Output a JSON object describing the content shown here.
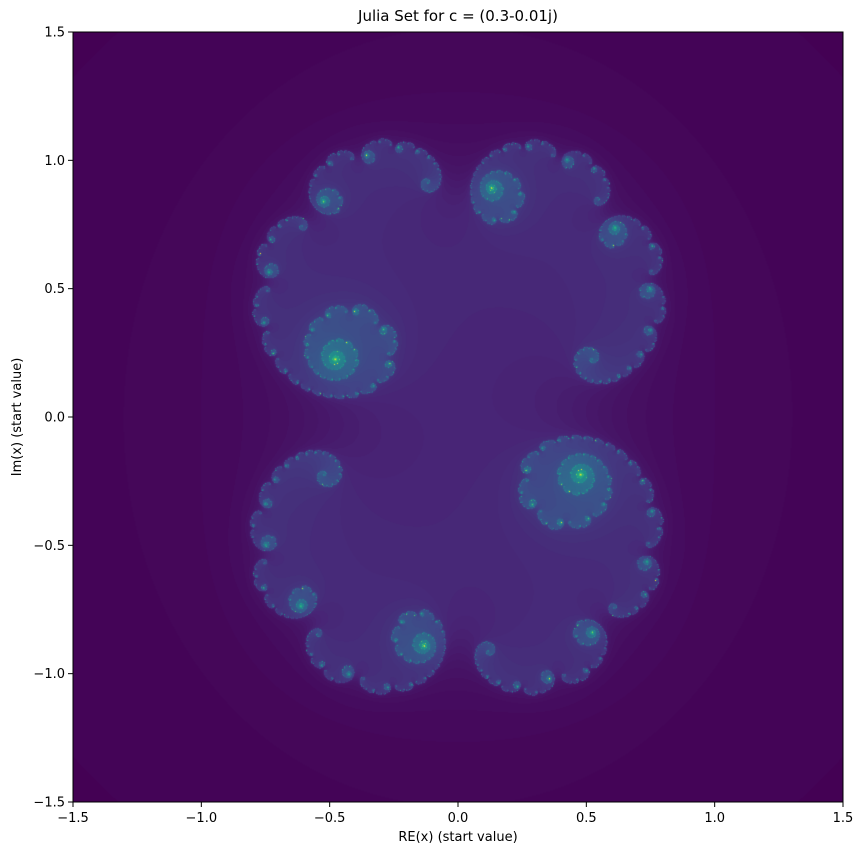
{
  "chart_data": {
    "type": "heatmap",
    "title": "Julia Set for c = (0.3-0.01j)",
    "xlabel": "RE(x) (start value)",
    "ylabel": "Im(x) (start value)",
    "c": {
      "re": 0.3,
      "im": -0.01
    },
    "xlim": [
      -1.5,
      1.5
    ],
    "ylim": [
      -1.5,
      1.5
    ],
    "x_ticks": [
      {
        "value": -1.5,
        "label": "−1.5"
      },
      {
        "value": -1.0,
        "label": "−1.0"
      },
      {
        "value": -0.5,
        "label": "−0.5"
      },
      {
        "value": 0.0,
        "label": "0.0"
      },
      {
        "value": 0.5,
        "label": "0.5"
      },
      {
        "value": 1.0,
        "label": "1.0"
      },
      {
        "value": 1.5,
        "label": "1.5"
      }
    ],
    "y_ticks": [
      {
        "value": -1.5,
        "label": "−1.5"
      },
      {
        "value": -1.0,
        "label": "−1.0"
      },
      {
        "value": -0.5,
        "label": "−0.5"
      },
      {
        "value": 0.0,
        "label": "0.0"
      },
      {
        "value": 0.5,
        "label": "0.5"
      },
      {
        "value": 1.0,
        "label": "1.0"
      },
      {
        "value": 1.5,
        "label": "1.5"
      }
    ],
    "colormap": "viridis",
    "grid": false,
    "legend": "none"
  }
}
